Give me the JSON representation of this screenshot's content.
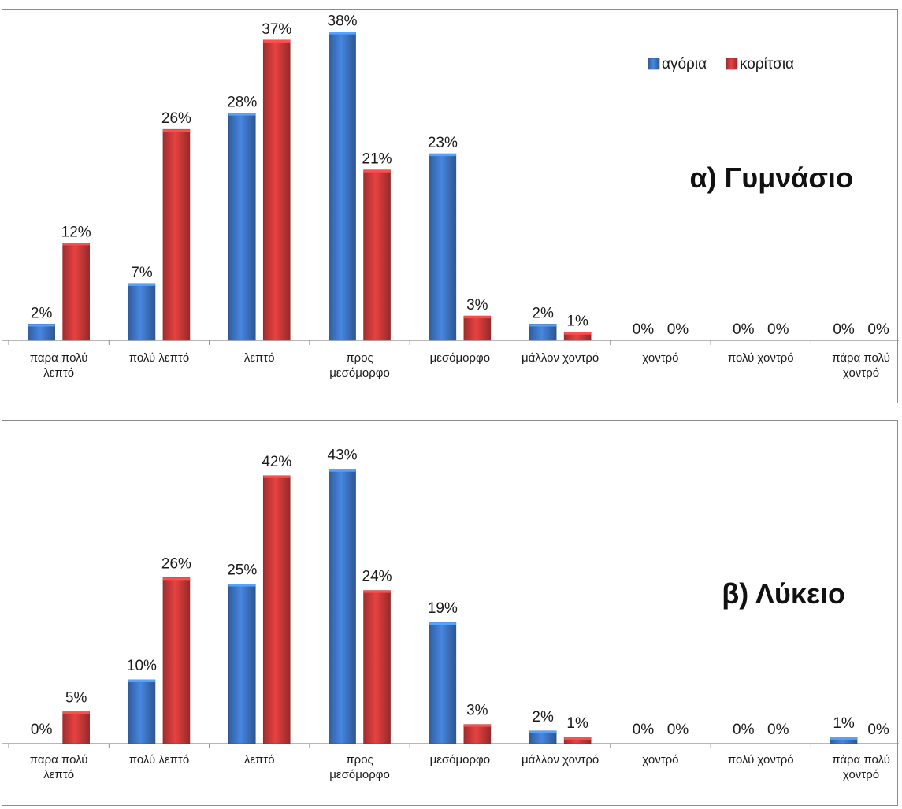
{
  "colors": {
    "boys": "#3f78c9",
    "girls": "#cf3a3a"
  },
  "legend": [
    {
      "name": "αγόρια",
      "color": "#3f78c9"
    },
    {
      "name": "κορίτσια",
      "color": "#cf3a3a"
    }
  ],
  "chart_data": [
    {
      "type": "bar",
      "title": "α) Γυμνάσιο",
      "categories": [
        [
          "παρα πολύ",
          "λεπτό"
        ],
        [
          "πολύ λεπτό"
        ],
        [
          "λεπτό"
        ],
        [
          "προς",
          "μεσόμορφο"
        ],
        [
          "μεσόμορφο"
        ],
        [
          "μάλλον χοντρό"
        ],
        [
          "χοντρό"
        ],
        [
          "πολύ χοντρό"
        ],
        [
          "πάρα πολύ",
          "χοντρό"
        ]
      ],
      "series": [
        {
          "name": "αγόρια",
          "values": [
            2,
            7,
            28,
            38,
            23,
            2,
            0,
            0,
            0
          ],
          "labels": [
            "2%",
            "7%",
            "28%",
            "38%",
            "23%",
            "2%",
            "0%",
            "0%",
            "0%"
          ]
        },
        {
          "name": "κορίτσια",
          "values": [
            12,
            26,
            37,
            21,
            3,
            1,
            0,
            0,
            0
          ],
          "labels": [
            "12%",
            "26%",
            "37%",
            "21%",
            "3%",
            "1%",
            "0%",
            "0%",
            "0%"
          ]
        }
      ],
      "unit": "%",
      "legend_position": "top-right",
      "grid": false
    },
    {
      "type": "bar",
      "title": "β) Λύκειο",
      "categories": [
        [
          "παρα πολύ",
          "λεπτό"
        ],
        [
          "πολύ λεπτό"
        ],
        [
          "λεπτό"
        ],
        [
          "προς",
          "μεσόμορφο"
        ],
        [
          "μεσόμορφο"
        ],
        [
          "μάλλον χοντρό"
        ],
        [
          "χοντρό"
        ],
        [
          "πολύ χοντρό"
        ],
        [
          "πάρα πολύ",
          "χοντρό"
        ]
      ],
      "series": [
        {
          "name": "αγόρια",
          "values": [
            0,
            10,
            25,
            43,
            19,
            2,
            0,
            0,
            1
          ],
          "labels": [
            "0%",
            "10%",
            "25%",
            "43%",
            "19%",
            "2%",
            "0%",
            "0%",
            "1%"
          ]
        },
        {
          "name": "κορίτσια",
          "values": [
            5,
            26,
            42,
            24,
            3,
            1,
            0,
            0,
            0
          ],
          "labels": [
            "5%",
            "26%",
            "42%",
            "24%",
            "3%",
            "1%",
            "0%",
            "0%",
            "0%"
          ]
        }
      ],
      "unit": "%",
      "grid": false
    }
  ]
}
